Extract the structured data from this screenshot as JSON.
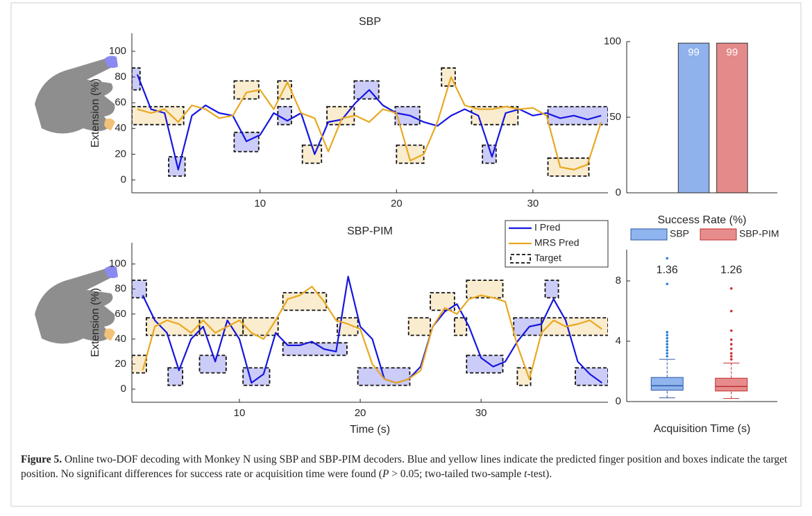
{
  "chart_data": [
    {
      "type": "line",
      "title": "SBP",
      "ylabel": "Extension (%)",
      "x": [
        1,
        2,
        3,
        4,
        5,
        6,
        7,
        8,
        9,
        10,
        11,
        12,
        13,
        14,
        15,
        16,
        17,
        18,
        19,
        20,
        21,
        22,
        23,
        24,
        25,
        26,
        27,
        28,
        29,
        30,
        31,
        32,
        33,
        34,
        35
      ],
      "series": [
        {
          "name": "I Pred",
          "color": "#1515e0",
          "values": [
            82,
            55,
            52,
            8,
            50,
            58,
            52,
            50,
            30,
            35,
            52,
            46,
            52,
            20,
            45,
            47,
            60,
            70,
            58,
            52,
            50,
            45,
            42,
            50,
            55,
            50,
            18,
            52,
            55,
            50,
            52,
            48,
            50,
            47,
            50
          ],
          "targets": [
            [
              0.6,
              1.2,
              70,
              87
            ],
            [
              3.3,
              4.5,
              3,
              18
            ],
            [
              8.1,
              9.9,
              22,
              37
            ],
            [
              11.3,
              12.3,
              43,
              57
            ],
            [
              16.9,
              18.7,
              63,
              77
            ],
            [
              19.9,
              21.7,
              43,
              57
            ],
            [
              26.3,
              27.3,
              13,
              27
            ],
            [
              31.1,
              35.5,
              43,
              57
            ]
          ]
        },
        {
          "name": "MRS Pred",
          "color": "#e8a820",
          "values": [
            55,
            52,
            55,
            45,
            58,
            55,
            48,
            50,
            68,
            70,
            55,
            76,
            52,
            48,
            22,
            48,
            50,
            45,
            55,
            52,
            15,
            20,
            45,
            80,
            58,
            55,
            55,
            57,
            55,
            56,
            50,
            10,
            8,
            12,
            45
          ],
          "targets": [
            [
              0.6,
              4.4,
              43,
              57
            ],
            [
              8.1,
              9.9,
              63,
              77
            ],
            [
              11.3,
              12.3,
              63,
              77
            ],
            [
              13.1,
              14.5,
              13,
              27
            ],
            [
              14.9,
              16.9,
              43,
              57
            ],
            [
              20.0,
              22.0,
              13,
              27
            ],
            [
              23.3,
              24.3,
              73,
              87
            ],
            [
              25.5,
              28.9,
              43,
              57
            ],
            [
              31.1,
              34.1,
              3,
              17
            ]
          ]
        }
      ],
      "xlim": [
        0.6,
        35.5
      ],
      "ylim": [
        -10,
        114
      ],
      "xticks": [
        10,
        20,
        30
      ],
      "yticks": [
        0,
        20,
        40,
        60,
        80,
        100
      ]
    },
    {
      "type": "line",
      "title": "SBP-PIM",
      "ylabel": "Extension (%)",
      "xlabel": "Time (s)",
      "legend": "above right",
      "target_label": "Target",
      "x": [
        2,
        3,
        4,
        5,
        6,
        7,
        8,
        9,
        10,
        11,
        12,
        13,
        14,
        15,
        16,
        17,
        18,
        19,
        20,
        21,
        22,
        23,
        24,
        25,
        26,
        27,
        28,
        29,
        30,
        31,
        32,
        33,
        34,
        35,
        36,
        37,
        38,
        39,
        40
      ],
      "series": [
        {
          "name": "I Pred",
          "color": "#1515e0",
          "values": [
            75,
            55,
            45,
            15,
            40,
            50,
            22,
            55,
            40,
            5,
            12,
            45,
            35,
            35,
            38,
            32,
            30,
            90,
            50,
            40,
            8,
            5,
            8,
            18,
            50,
            62,
            68,
            50,
            25,
            18,
            22,
            38,
            50,
            52,
            72,
            55,
            22,
            12,
            5
          ],
          "targets": [
            [
              1.1,
              2.3,
              73,
              87
            ],
            [
              4.1,
              5.3,
              3,
              17
            ],
            [
              6.7,
              8.9,
              13,
              27
            ],
            [
              10.3,
              12.5,
              3,
              17
            ],
            [
              13.6,
              18.9,
              27,
              37
            ],
            [
              19.8,
              24.1,
              3,
              17
            ],
            [
              28.8,
              31.8,
              13,
              27
            ],
            [
              32.7,
              35.0,
              43,
              57
            ],
            [
              35.3,
              36.4,
              73,
              87
            ],
            [
              37.8,
              40.5,
              3,
              17
            ]
          ]
        },
        {
          "name": "MRS Pred",
          "color": "#e8a820",
          "values": [
            15,
            50,
            55,
            52,
            45,
            55,
            45,
            50,
            55,
            45,
            40,
            55,
            72,
            75,
            82,
            70,
            55,
            52,
            48,
            20,
            8,
            5,
            8,
            15,
            50,
            65,
            60,
            72,
            75,
            73,
            70,
            35,
            8,
            45,
            55,
            50,
            52,
            55,
            48
          ],
          "targets": [
            [
              1.1,
              2.3,
              13,
              27
            ],
            [
              2.3,
              6.7,
              43,
              57
            ],
            [
              6.7,
              10.3,
              43,
              57
            ],
            [
              10.3,
              13.2,
              43,
              57
            ],
            [
              13.6,
              17.2,
              63,
              77
            ],
            [
              18.1,
              19.8,
              43,
              57
            ],
            [
              24.0,
              25.8,
              43,
              57
            ],
            [
              25.8,
              27.8,
              63,
              77
            ],
            [
              27.8,
              28.8,
              43,
              57
            ],
            [
              28.8,
              31.8,
              73,
              87
            ],
            [
              33.0,
              34.1,
              3,
              17
            ],
            [
              35.0,
              40.5,
              43,
              57
            ]
          ]
        }
      ],
      "xlim": [
        1.1,
        40.5
      ],
      "ylim": [
        -10.5,
        117
      ],
      "xticks": [
        10,
        20,
        30
      ],
      "yticks": [
        0,
        20,
        40,
        60,
        80,
        100
      ]
    },
    {
      "type": "bar",
      "xlabel": "Success Rate (%)",
      "categories": [
        null,
        null
      ],
      "values": [
        99,
        99
      ],
      "colors": [
        "#8fb1ec",
        "#e58a8a"
      ],
      "ylim": [
        0,
        100
      ],
      "yticks": [
        0,
        50,
        100
      ]
    },
    {
      "type": "box",
      "xlabel": "Acquisition Time (s)",
      "legend": "top",
      "series": [
        {
          "name": "SBP",
          "color": "#8fb4ee",
          "edgecolor": "#2c5aa6",
          "flier_color": "#2a7fd4",
          "annotation": "1.36",
          "whislo": 0.25,
          "q1": 0.75,
          "med": 1.05,
          "q3": 1.6,
          "whishi": 2.8,
          "fliers": [
            3.0,
            3.2,
            3.4,
            3.6,
            3.8,
            4.0,
            4.2,
            4.4,
            4.6,
            7.8,
            9.5
          ]
        },
        {
          "name": "SBP-PIM",
          "color": "#e68c8c",
          "edgecolor": "#c03030",
          "flier_color": "#d03030",
          "annotation": "1.26",
          "whislo": 0.2,
          "q1": 0.7,
          "med": 1.0,
          "q3": 1.55,
          "whishi": 2.55,
          "fliers": [
            2.8,
            3.0,
            3.2,
            3.5,
            3.8,
            4.1,
            4.7,
            6.0,
            7.5
          ]
        }
      ],
      "ylim": [
        0,
        10.07
      ],
      "yticks": [
        0,
        4,
        8
      ]
    }
  ],
  "caption": {
    "label": "Figure 5.",
    "text_1": " Online two-DOF decoding with Monkey N using SBP and SBP-PIM decoders. Blue and yellow lines indicate the predicted finger position and boxes indicate the target position. No significant differences for success rate or acquisition time were found (",
    "p": "P",
    "text_2": " > 0.05; two-tailed two-sample ",
    "t": "t",
    "text_3": "-test)."
  }
}
